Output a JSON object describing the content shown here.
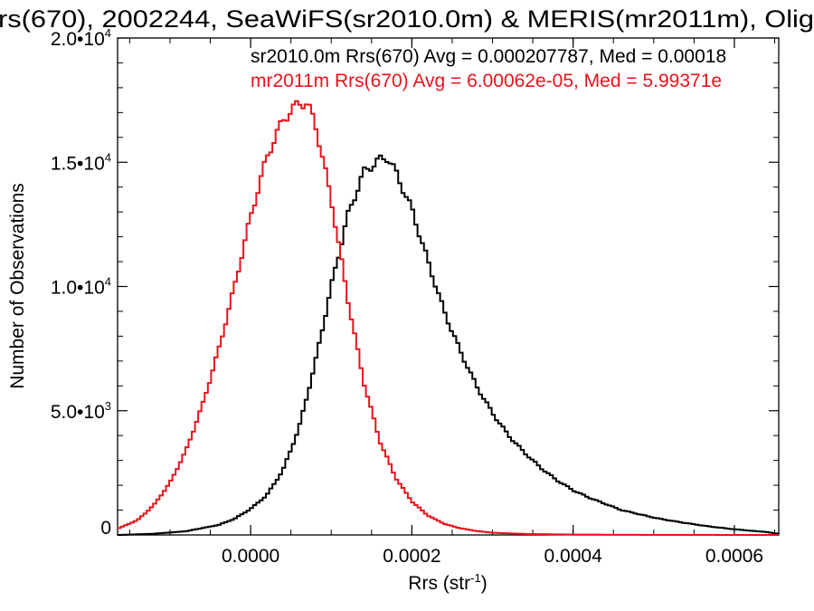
{
  "chart_data": {
    "type": "line",
    "title": "rs(670), 2002244, SeaWiFS(sr2010.0m) & MERIS(mr2011m), Olig",
    "xlabel": "Rrs (str",
    "xlabel_sup": "-1",
    "xlabel_close": ")",
    "ylabel": "Number of Observations",
    "xlim": [
      -0.000165,
      0.000655
    ],
    "ylim": [
      0,
      20000
    ],
    "x_ticks": [
      {
        "value": 0.0,
        "label": "0.0000"
      },
      {
        "value": 0.0002,
        "label": "0.0002"
      },
      {
        "value": 0.0004,
        "label": "0.0004"
      },
      {
        "value": 0.0006,
        "label": "0.0006"
      }
    ],
    "y_ticks": [
      {
        "value": 0,
        "label": "0",
        "exp": ""
      },
      {
        "value": 5000,
        "label": "5.0•10",
        "exp": "3"
      },
      {
        "value": 10000,
        "label": "1.0•10",
        "exp": "4"
      },
      {
        "value": 15000,
        "label": "1.5•10",
        "exp": "4"
      },
      {
        "value": 20000,
        "label": "2.0•10",
        "exp": "4"
      }
    ],
    "grid": false,
    "legend_position": "top-right",
    "legend": [
      {
        "text": "sr2010.0m Rrs(670) Avg = 0.000207787, Med = 0.00018",
        "color": "#000000"
      },
      {
        "text": "mr2011m Rrs(670) Avg = 6.00062e-05, Med = 5.99371e",
        "color": "#e8141b"
      }
    ],
    "series": [
      {
        "color": "#000000",
        "points": [
          [
            -0.000165,
            0
          ],
          [
            -0.00012,
            50
          ],
          [
            -8e-05,
            150
          ],
          [
            -4e-05,
            400
          ],
          [
            -2e-05,
            650
          ],
          [
            0.0,
            1050
          ],
          [
            2e-05,
            1600
          ],
          [
            4e-05,
            2600
          ],
          [
            6e-05,
            4300
          ],
          [
            8e-05,
            6900
          ],
          [
            0.0001,
            10000
          ],
          [
            0.00012,
            12800
          ],
          [
            0.00014,
            14600
          ],
          [
            0.00016,
            15100
          ],
          [
            0.00017,
            15200
          ],
          [
            0.00018,
            14600
          ],
          [
            0.0002,
            13100
          ],
          [
            0.00022,
            11000
          ],
          [
            0.00024,
            9000
          ],
          [
            0.00026,
            7400
          ],
          [
            0.00028,
            6000
          ],
          [
            0.0003,
            4900
          ],
          [
            0.00032,
            4000
          ],
          [
            0.00034,
            3300
          ],
          [
            0.00036,
            2700
          ],
          [
            0.00038,
            2200
          ],
          [
            0.0004,
            1800
          ],
          [
            0.00042,
            1500
          ],
          [
            0.00044,
            1250
          ],
          [
            0.00046,
            1000
          ],
          [
            0.00048,
            850
          ],
          [
            0.0005,
            700
          ],
          [
            0.00052,
            580
          ],
          [
            0.00054,
            480
          ],
          [
            0.00056,
            380
          ],
          [
            0.00058,
            300
          ],
          [
            0.0006,
            230
          ],
          [
            0.00062,
            170
          ],
          [
            0.00064,
            120
          ],
          [
            0.00065,
            60
          ]
        ]
      },
      {
        "color": "#e8141b",
        "points": [
          [
            -0.000165,
            250
          ],
          [
            -0.00014,
            600
          ],
          [
            -0.00012,
            1200
          ],
          [
            -0.0001,
            2100
          ],
          [
            -8e-05,
            3400
          ],
          [
            -6e-05,
            5200
          ],
          [
            -4e-05,
            7400
          ],
          [
            -2e-05,
            10000
          ],
          [
            0.0,
            12800
          ],
          [
            2e-05,
            15200
          ],
          [
            4e-05,
            16700
          ],
          [
            6e-05,
            17400
          ],
          [
            7e-05,
            17350
          ],
          [
            8e-05,
            16600
          ],
          [
            0.0001,
            13500
          ],
          [
            0.00012,
            9600
          ],
          [
            0.00014,
            6200
          ],
          [
            0.00016,
            3800
          ],
          [
            0.00018,
            2300
          ],
          [
            0.0002,
            1350
          ],
          [
            0.00022,
            780
          ],
          [
            0.00024,
            450
          ],
          [
            0.00026,
            270
          ],
          [
            0.00028,
            160
          ],
          [
            0.0003,
            90
          ],
          [
            0.00034,
            40
          ],
          [
            0.0004,
            15
          ],
          [
            0.0005,
            5
          ],
          [
            0.00065,
            0
          ]
        ]
      }
    ]
  }
}
